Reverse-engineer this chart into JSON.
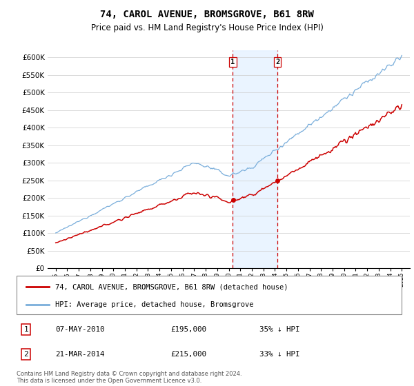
{
  "title": "74, CAROL AVENUE, BROMSGROVE, B61 8RW",
  "subtitle": "Price paid vs. HM Land Registry's House Price Index (HPI)",
  "title_fontsize": 10,
  "subtitle_fontsize": 8.5,
  "hpi_color": "#7aaedb",
  "price_color": "#cc0000",
  "vline_color": "#cc0000",
  "shade_color": "#ddeeff",
  "legend_label_red": "74, CAROL AVENUE, BROMSGROVE, B61 8RW (detached house)",
  "legend_label_blue": "HPI: Average price, detached house, Bromsgrove",
  "transaction1_date": "07-MAY-2010",
  "transaction1_price": "£195,000",
  "transaction1_info": "35% ↓ HPI",
  "transaction2_date": "21-MAR-2014",
  "transaction2_price": "£215,000",
  "transaction2_info": "33% ↓ HPI",
  "footer": "Contains HM Land Registry data © Crown copyright and database right 2024.\nThis data is licensed under the Open Government Licence v3.0.",
  "ylim_min": 0,
  "ylim_max": 620000,
  "yticks": [
    0,
    50000,
    100000,
    150000,
    200000,
    250000,
    300000,
    350000,
    400000,
    450000,
    500000,
    550000,
    600000
  ],
  "ytick_labels": [
    "£0",
    "£50K",
    "£100K",
    "£150K",
    "£200K",
    "£250K",
    "£300K",
    "£350K",
    "£400K",
    "£450K",
    "£500K",
    "£550K",
    "£600K"
  ],
  "transaction1_year": 2010.35,
  "transaction2_year": 2014.22,
  "transaction1_price_val": 195000,
  "transaction2_price_val": 215000
}
